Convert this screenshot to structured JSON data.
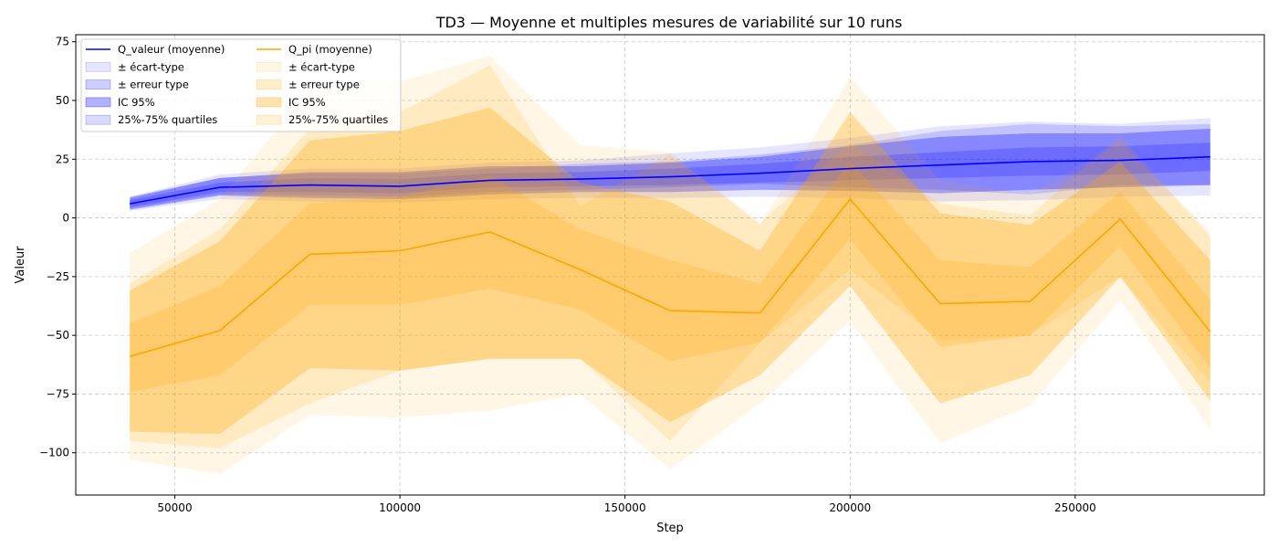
{
  "chart_data": {
    "type": "line",
    "title": "TD3 — Moyenne et multiples mesures de variabilité sur 10 runs",
    "xlabel": "Step",
    "ylabel": "Valeur",
    "xlim": [
      28000,
      292000
    ],
    "ylim": [
      -118,
      78
    ],
    "xticks": [
      50000,
      100000,
      150000,
      200000,
      250000
    ],
    "yticks": [
      -100,
      -75,
      -50,
      -25,
      0,
      25,
      50,
      75
    ],
    "grid": true,
    "legend_position": "top-left",
    "x": [
      40000,
      60000,
      80000,
      100000,
      120000,
      140000,
      160000,
      180000,
      200000,
      220000,
      240000,
      260000,
      280000
    ],
    "series": [
      {
        "name": "Q_valeur (moyenne)",
        "color": "#0000ff",
        "mean": [
          6,
          13,
          14,
          13.5,
          16,
          16.5,
          17.5,
          19,
          21,
          22.5,
          24,
          24.5,
          26
        ],
        "bands": [
          {
            "name": "25%-75% quartiles",
            "lower": [
              4,
              10,
              9.5,
              9,
              11,
              12,
              13,
              14.5,
              13,
              12,
              10,
              14,
              14
            ],
            "upper": [
              9,
              17,
              19,
              19,
              21,
              23,
              24,
              27,
              31,
              37,
              40,
              39,
              40
            ]
          },
          {
            "name": "± écart-type",
            "lower": [
              3,
              8,
              7,
              6.5,
              8,
              8.5,
              8.5,
              9,
              8.5,
              7,
              7.5,
              9,
              9.5
            ],
            "upper": [
              9,
              18.5,
              21,
              21,
              23.5,
              24.5,
              27.5,
              30,
              34,
              39,
              41,
              40,
              42.5
            ]
          },
          {
            "name": "± erreur type",
            "lower": [
              4.5,
              11,
              11,
              10.5,
              13,
              13.5,
              14,
              15,
              16,
              17,
              18,
              18.5,
              20
            ],
            "upper": [
              7.5,
              15,
              17,
              16.5,
              19,
              19.5,
              21,
              23,
              26,
              28,
              30,
              30.5,
              32
            ]
          },
          {
            "name": "IC 95%",
            "lower": [
              3.5,
              9.5,
              8.5,
              8,
              10,
              11,
              11,
              12,
              11.5,
              10.5,
              12,
              13,
              14
            ],
            "upper": [
              8.5,
              17,
              19.5,
              19.5,
              22,
              22,
              23.5,
              26,
              30.5,
              34.5,
              36,
              36,
              38
            ]
          }
        ]
      },
      {
        "name": "Q_pi (moyenne)",
        "color": "#ffa500",
        "mean": [
          -59,
          -48,
          -15.5,
          -14,
          -6,
          -22,
          -39.5,
          -40.5,
          8,
          -36.5,
          -35.5,
          -0.5,
          -48.5
        ],
        "bands": [
          {
            "name": "25%-75% quartiles",
            "lower": [
              -95,
              -98,
              -79,
              -65,
              -60,
              -60,
              -95,
              -53,
              -22,
              -52,
              -50,
              -25,
              -70
            ],
            "upper": [
              -28,
              -5,
              38,
              45,
              65,
              5,
              27,
              -2,
              32,
              6,
              1,
              35,
              -8
            ]
          },
          {
            "name": "± écart-type",
            "lower": [
              -103,
              -109,
              -84,
              -85,
              -82,
              -75,
              -107,
              -79,
              -44,
              -96,
              -80,
              -35,
              -90
            ],
            "upper": [
              -15,
              8,
              55,
              58,
              69,
              31,
              28,
              -3,
              60,
              16,
              10,
              32,
              -6
            ]
          },
          {
            "name": "± erreur type",
            "lower": [
              -74,
              -67,
              -37,
              -37,
              -30,
              -39,
              -61,
              -53,
              -9,
              -55,
              -50,
              -12,
              -64
            ],
            "upper": [
              -45,
              -29,
              6,
              9,
              18,
              -5,
              -18,
              -28,
              24,
              -18,
              -21,
              11,
              -35
            ]
          },
          {
            "name": "IC 95%",
            "lower": [
              -91,
              -92,
              -64,
              -65,
              -60,
              -60,
              -87,
              -67,
              -29,
              -79,
              -67,
              -25,
              -78
            ],
            "upper": [
              -31,
              -10,
              33,
              37,
              47,
              15,
              7,
              -14,
              45,
              2,
              -3,
              24,
              -18
            ]
          }
        ]
      }
    ],
    "legend": [
      {
        "label": "Q_valeur (moyenne)",
        "kind": "line",
        "color": "#0000ff"
      },
      {
        "label": "± écart-type",
        "kind": "patch",
        "color": "#0000ff",
        "alpha": 0.1
      },
      {
        "label": "± erreur type",
        "kind": "patch",
        "color": "#0000ff",
        "alpha": 0.2
      },
      {
        "label": "IC 95%",
        "kind": "patch",
        "color": "#0000ff",
        "alpha": 0.3
      },
      {
        "label": "25%-75% quartiles",
        "kind": "patch",
        "color": "#0000ff",
        "alpha": 0.15
      },
      {
        "label": "Q_pi (moyenne)",
        "kind": "line",
        "color": "#ffa500"
      },
      {
        "label": "± écart-type",
        "kind": "patch",
        "color": "#ffa500",
        "alpha": 0.1
      },
      {
        "label": "± erreur type",
        "kind": "patch",
        "color": "#ffa500",
        "alpha": 0.2
      },
      {
        "label": "IC 95%",
        "kind": "patch",
        "color": "#ffa500",
        "alpha": 0.3
      },
      {
        "label": "25%-75% quartiles",
        "kind": "patch",
        "color": "#ffa500",
        "alpha": 0.15
      }
    ]
  }
}
